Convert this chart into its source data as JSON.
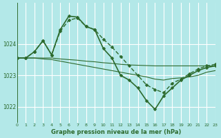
{
  "title": "Graphe pression niveau de la mer (hPa)",
  "bg_color": "#b3e8e8",
  "grid_color": "#ffffff",
  "line_color": "#2d6a2d",
  "xlim": [
    0,
    23
  ],
  "ylim": [
    1021.5,
    1025.3
  ],
  "yticks": [
    1022,
    1023,
    1024
  ],
  "xticks": [
    0,
    1,
    2,
    3,
    4,
    5,
    6,
    7,
    8,
    9,
    10,
    11,
    12,
    13,
    14,
    15,
    16,
    17,
    18,
    19,
    20,
    21,
    22,
    23
  ],
  "series": [
    {
      "x": [
        0,
        1,
        2,
        3,
        4,
        5,
        6,
        7,
        8,
        9,
        10,
        11,
        12,
        13,
        14,
        15,
        16,
        17,
        18,
        19,
        20,
        21,
        22,
        23
      ],
      "y": [
        1023.55,
        1023.55,
        1023.55,
        1023.55,
        1023.55,
        1023.52,
        1023.5,
        1023.48,
        1023.45,
        1023.43,
        1023.4,
        1023.38,
        1023.35,
        1023.33,
        1023.32,
        1023.31,
        1023.3,
        1023.3,
        1023.3,
        1023.3,
        1023.3,
        1023.3,
        1023.3,
        1023.3
      ],
      "style": "solid",
      "marker": null,
      "linewidth": 0.8
    },
    {
      "x": [
        0,
        1,
        2,
        3,
        4,
        5,
        6,
        7,
        8,
        9,
        10,
        11,
        12,
        13,
        14,
        15,
        16,
        17,
        18,
        19,
        20,
        21,
        22,
        23
      ],
      "y": [
        1023.55,
        1023.55,
        1023.55,
        1023.52,
        1023.5,
        1023.45,
        1023.4,
        1023.35,
        1023.3,
        1023.25,
        1023.2,
        1023.15,
        1023.1,
        1023.05,
        1023.0,
        1022.95,
        1022.88,
        1022.85,
        1022.9,
        1022.92,
        1022.95,
        1023.0,
        1023.1,
        1023.15
      ],
      "style": "solid",
      "marker": null,
      "linewidth": 0.8
    },
    {
      "x": [
        0,
        1,
        2,
        3,
        4,
        5,
        6,
        7,
        8,
        9,
        10,
        11,
        12,
        13,
        14,
        15,
        16,
        17,
        18,
        19,
        20,
        21,
        22,
        23
      ],
      "y": [
        1023.55,
        1023.55,
        1023.75,
        1024.1,
        1023.65,
        1024.4,
        1024.75,
        1024.82,
        1024.55,
        1024.45,
        1024.15,
        1023.9,
        1023.6,
        1023.3,
        1023.0,
        1022.7,
        1022.55,
        1022.45,
        1022.75,
        1022.88,
        1023.05,
        1023.2,
        1023.3,
        1023.35
      ],
      "style": "dashed",
      "marker": "D",
      "linewidth": 1.0,
      "markersize": 2.5
    },
    {
      "x": [
        0,
        1,
        2,
        3,
        4,
        5,
        6,
        7,
        8,
        9,
        10,
        11,
        12,
        13,
        14,
        15,
        16,
        17,
        18,
        19,
        20,
        21,
        22,
        23
      ],
      "y": [
        1023.55,
        1023.55,
        1023.75,
        1024.1,
        1023.65,
        1024.45,
        1024.88,
        1024.85,
        1024.55,
        1024.45,
        1023.85,
        1023.55,
        1023.0,
        1022.85,
        1022.6,
        1022.2,
        1021.92,
        1022.35,
        1022.6,
        1022.85,
        1023.0,
        1023.15,
        1023.25,
        1023.3
      ],
      "style": "solid",
      "marker": "D",
      "linewidth": 1.2,
      "markersize": 2.5
    }
  ]
}
